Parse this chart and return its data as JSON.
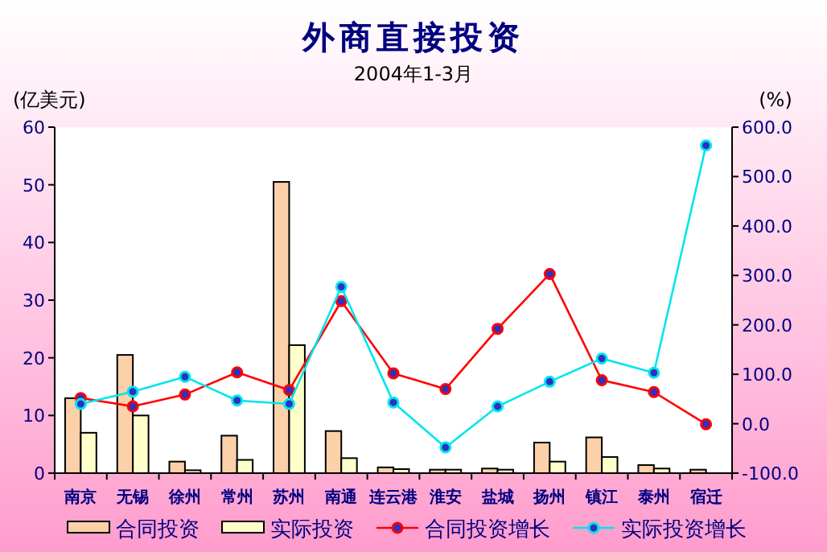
{
  "chart_data": {
    "type": "bar",
    "title": "外商直接投资",
    "subtitle": "2004年1-3月",
    "ylabel": "(亿美元)",
    "y2label": "(%)",
    "categories": [
      "南京",
      "无锡",
      "徐州",
      "常州",
      "苏州",
      "南通",
      "连云港",
      "淮安",
      "盐城",
      "扬州",
      "镇江",
      "泰州",
      "宿迁"
    ],
    "series": [
      {
        "name": "合同投资",
        "color": "#fcd0a8",
        "values": [
          13,
          20.5,
          2,
          6.5,
          50.5,
          7.3,
          1,
          0.6,
          0.8,
          5.3,
          6.2,
          1.4,
          0.6
        ]
      },
      {
        "name": "实际投资",
        "color": "#ffffcc",
        "values": [
          7,
          10,
          0.5,
          2.3,
          22.2,
          2.6,
          0.7,
          0.6,
          0.6,
          2,
          2.8,
          0.8,
          null
        ]
      },
      {
        "name": "合同投资增长",
        "type": "line",
        "axis": "y2",
        "color": "#ff0000",
        "values": [
          52,
          35,
          59,
          104,
          68,
          248,
          102,
          70,
          192,
          303,
          88,
          64,
          -1
        ]
      },
      {
        "name": "实际投资增长",
        "type": "line",
        "axis": "y2",
        "color": "#00e5ee",
        "values": [
          40,
          65,
          95,
          47,
          40,
          277,
          43,
          -48,
          35,
          85,
          132,
          103,
          563
        ]
      }
    ],
    "ylim": [
      0,
      60
    ],
    "yticks": [
      0,
      10,
      20,
      30,
      40,
      50,
      60
    ],
    "y2lim": [
      -100,
      600
    ],
    "y2ticks": [
      {
        "value": -100,
        "label": "-100.0"
      },
      {
        "value": 0,
        "label": "0.0"
      },
      {
        "value": 100,
        "label": "100.0"
      },
      {
        "value": 200,
        "label": "200.0"
      },
      {
        "value": 300,
        "label": "300.0"
      },
      {
        "value": 400,
        "label": "400.0"
      },
      {
        "value": 500,
        "label": "500.0"
      },
      {
        "value": 600,
        "label": "600.0"
      }
    ],
    "marker": "circle",
    "legend": "bottom",
    "grid": false
  }
}
